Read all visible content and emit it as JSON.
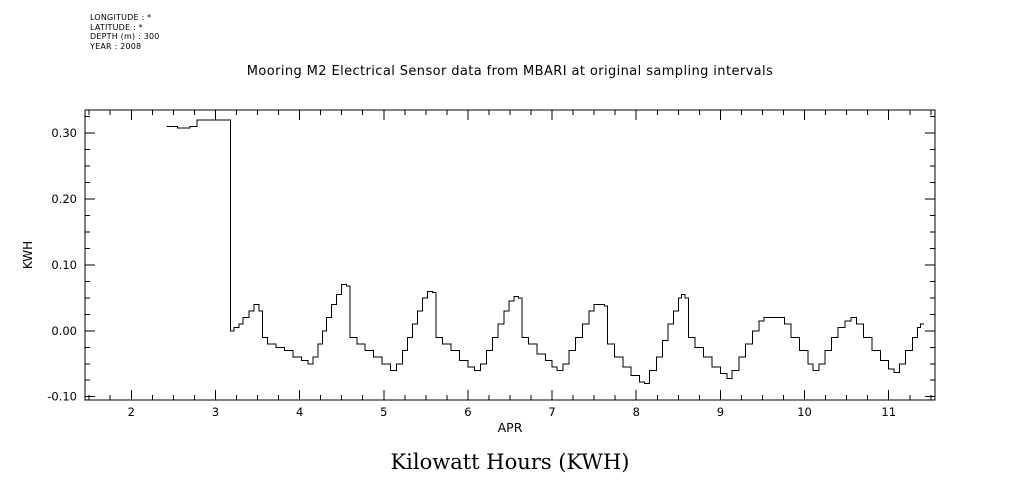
{
  "metadata": {
    "lines": [
      "LONGITUDE : *",
      "LATITUDE : *",
      "DEPTH (m) : 300",
      "YEAR : 2008"
    ]
  },
  "chart_data": {
    "type": "line",
    "style": "step-after",
    "title": "Mooring M2 Electrical Sensor data from MBARI at original sampling intervals",
    "bottom_title": "Kilowatt Hours (KWH)",
    "xlabel": "APR",
    "ylabel": "KWH",
    "x_range": [
      1.45,
      11.55
    ],
    "y_range": [
      -0.105,
      0.335
    ],
    "x_ticks": [
      2,
      3,
      4,
      5,
      6,
      7,
      8,
      9,
      10,
      11
    ],
    "y_ticks": [
      -0.1,
      0.0,
      0.1,
      0.2,
      0.3
    ],
    "x_minor_step": 0.25,
    "y_minor_step": 0.025,
    "line_color": "#000000",
    "background": "#ffffff",
    "grid": false,
    "legend": false,
    "series": [
      {
        "name": "KWH",
        "points": [
          [
            2.42,
            0.31
          ],
          [
            2.55,
            0.308
          ],
          [
            2.7,
            0.31
          ],
          [
            2.78,
            0.32
          ],
          [
            3.18,
            0.0
          ],
          [
            3.22,
            0.005
          ],
          [
            3.28,
            0.01
          ],
          [
            3.33,
            0.02
          ],
          [
            3.4,
            0.03
          ],
          [
            3.46,
            0.04
          ],
          [
            3.52,
            0.03
          ],
          [
            3.56,
            -0.01
          ],
          [
            3.62,
            -0.02
          ],
          [
            3.72,
            -0.025
          ],
          [
            3.82,
            -0.03
          ],
          [
            3.92,
            -0.04
          ],
          [
            4.02,
            -0.045
          ],
          [
            4.1,
            -0.05
          ],
          [
            4.16,
            -0.04
          ],
          [
            4.22,
            -0.02
          ],
          [
            4.27,
            0.0
          ],
          [
            4.32,
            0.02
          ],
          [
            4.38,
            0.04
          ],
          [
            4.44,
            0.055
          ],
          [
            4.5,
            0.07
          ],
          [
            4.56,
            0.068
          ],
          [
            4.6,
            -0.01
          ],
          [
            4.68,
            -0.02
          ],
          [
            4.78,
            -0.03
          ],
          [
            4.88,
            -0.04
          ],
          [
            4.98,
            -0.05
          ],
          [
            5.08,
            -0.06
          ],
          [
            5.15,
            -0.05
          ],
          [
            5.22,
            -0.03
          ],
          [
            5.28,
            -0.01
          ],
          [
            5.34,
            0.01
          ],
          [
            5.4,
            0.03
          ],
          [
            5.46,
            0.05
          ],
          [
            5.52,
            0.06
          ],
          [
            5.58,
            0.058
          ],
          [
            5.62,
            -0.01
          ],
          [
            5.7,
            -0.02
          ],
          [
            5.8,
            -0.03
          ],
          [
            5.9,
            -0.045
          ],
          [
            6.0,
            -0.055
          ],
          [
            6.08,
            -0.06
          ],
          [
            6.15,
            -0.05
          ],
          [
            6.22,
            -0.03
          ],
          [
            6.29,
            -0.01
          ],
          [
            6.36,
            0.01
          ],
          [
            6.43,
            0.03
          ],
          [
            6.49,
            0.045
          ],
          [
            6.55,
            0.052
          ],
          [
            6.6,
            0.05
          ],
          [
            6.64,
            -0.01
          ],
          [
            6.72,
            -0.02
          ],
          [
            6.82,
            -0.035
          ],
          [
            6.92,
            -0.045
          ],
          [
            7.0,
            -0.055
          ],
          [
            7.06,
            -0.06
          ],
          [
            7.13,
            -0.05
          ],
          [
            7.2,
            -0.03
          ],
          [
            7.28,
            -0.01
          ],
          [
            7.36,
            0.01
          ],
          [
            7.44,
            0.03
          ],
          [
            7.5,
            0.04
          ],
          [
            7.62,
            0.038
          ],
          [
            7.66,
            -0.02
          ],
          [
            7.74,
            -0.04
          ],
          [
            7.84,
            -0.055
          ],
          [
            7.94,
            -0.068
          ],
          [
            8.04,
            -0.078
          ],
          [
            8.1,
            -0.08
          ],
          [
            8.16,
            -0.06
          ],
          [
            8.24,
            -0.04
          ],
          [
            8.31,
            -0.015
          ],
          [
            8.38,
            0.01
          ],
          [
            8.44,
            0.03
          ],
          [
            8.5,
            0.05
          ],
          [
            8.54,
            0.055
          ],
          [
            8.58,
            0.05
          ],
          [
            8.62,
            -0.01
          ],
          [
            8.7,
            -0.025
          ],
          [
            8.8,
            -0.04
          ],
          [
            8.9,
            -0.055
          ],
          [
            9.0,
            -0.065
          ],
          [
            9.08,
            -0.072
          ],
          [
            9.14,
            -0.06
          ],
          [
            9.22,
            -0.04
          ],
          [
            9.3,
            -0.02
          ],
          [
            9.38,
            0.0
          ],
          [
            9.46,
            0.015
          ],
          [
            9.52,
            0.02
          ],
          [
            9.68,
            0.02
          ],
          [
            9.76,
            0.01
          ],
          [
            9.84,
            -0.01
          ],
          [
            9.94,
            -0.03
          ],
          [
            10.04,
            -0.05
          ],
          [
            10.1,
            -0.06
          ],
          [
            10.17,
            -0.05
          ],
          [
            10.24,
            -0.03
          ],
          [
            10.32,
            -0.01
          ],
          [
            10.4,
            0.005
          ],
          [
            10.48,
            0.015
          ],
          [
            10.55,
            0.02
          ],
          [
            10.62,
            0.01
          ],
          [
            10.7,
            -0.01
          ],
          [
            10.8,
            -0.03
          ],
          [
            10.9,
            -0.045
          ],
          [
            11.0,
            -0.058
          ],
          [
            11.06,
            -0.063
          ],
          [
            11.13,
            -0.05
          ],
          [
            11.2,
            -0.03
          ],
          [
            11.28,
            -0.01
          ],
          [
            11.34,
            0.005
          ],
          [
            11.38,
            0.01
          ]
        ]
      }
    ]
  }
}
